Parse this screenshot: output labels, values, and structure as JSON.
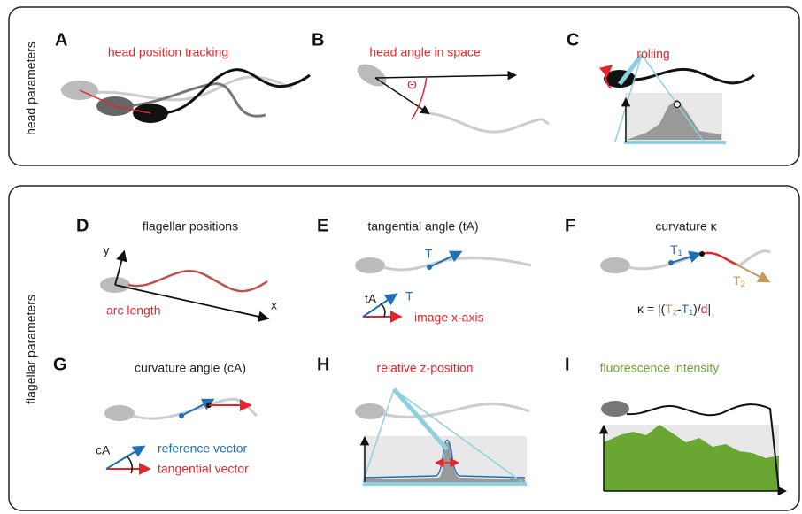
{
  "sections": [
    {
      "label": "head parameters"
    },
    {
      "label": "flagellar parameters"
    }
  ],
  "panels": [
    {
      "letter": "A",
      "title": "head position tracking"
    },
    {
      "letter": "B",
      "title": "head angle in space",
      "angle": "Θ"
    },
    {
      "letter": "C",
      "title": "rolling"
    },
    {
      "letter": "D",
      "title": "flagellar positions",
      "y_axis": "y",
      "x_axis": "x",
      "arc": "arc length"
    },
    {
      "letter": "E",
      "title": "tangential angle (tA)",
      "vector": "T",
      "angle": "tA",
      "legend_vector": "T",
      "reference": "image x-axis"
    },
    {
      "letter": "F",
      "title": "curvature κ",
      "t1": {
        "base": "T",
        "sub": "1"
      },
      "t2": {
        "base": "T",
        "sub": "2"
      },
      "formula": [
        "κ = |(",
        "T",
        "2",
        "-",
        "T",
        "1",
        ")/",
        "d",
        "|"
      ]
    },
    {
      "letter": "G",
      "title": "curvature angle (cA)",
      "angle": "cA",
      "reference": "reference vector",
      "tangential": "tangential vector"
    },
    {
      "letter": "H",
      "title": "relative z-position"
    },
    {
      "letter": "I",
      "title": "fluorescence intensity"
    }
  ]
}
